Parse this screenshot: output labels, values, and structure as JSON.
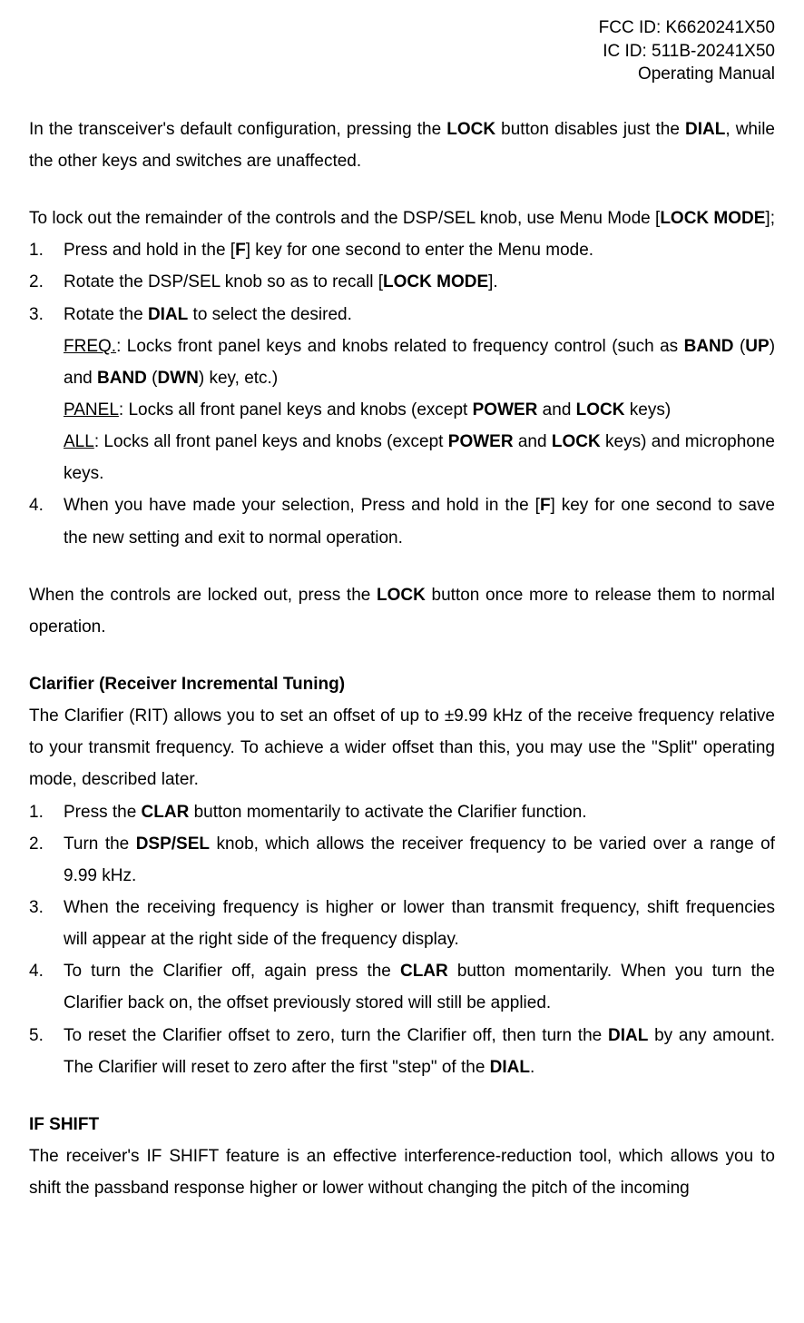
{
  "header": {
    "fcc": "FCC ID: K6620241X50",
    "ic": "IC ID: 511B-20241X50",
    "title": "Operating Manual"
  },
  "p1": {
    "t1": "In the transceiver's default configuration, pressing the ",
    "b1": "LOCK",
    "t2": " button disables just the ",
    "b2": "DIAL",
    "t3": ", while the other keys and switches are unaffected."
  },
  "p2": {
    "t1": "To lock out the remainder of the controls and the DSP/SEL knob, use Menu Mode [",
    "b1": "LOCK MODE",
    "t2": "];"
  },
  "list1": {
    "i1": {
      "t1": "Press and hold in the [",
      "b1": "F",
      "t2": "] key for one second to enter the Menu mode."
    },
    "i2": {
      "t1": "Rotate the DSP/SEL knob so as to recall [",
      "b1": "LOCK MODE",
      "t2": "]."
    },
    "i3": {
      "t1": "Rotate the ",
      "b1": "DIAL",
      "t2": " to select the desired."
    },
    "i3a": {
      "u1": "FREQ.",
      "t1": ": Locks front panel keys and knobs related to frequency control (such as ",
      "b1": "BAND",
      "t2": " (",
      "b2": "UP",
      "t3": ") and ",
      "b3": "BAND",
      "t4": " (",
      "b4": "DWN",
      "t5": ") key, etc.)"
    },
    "i3b": {
      "u1": "PANEL",
      "t1": ": Locks all front panel keys and knobs (except ",
      "b1": "POWER",
      "t2": " and ",
      "b2": "LOCK",
      "t3": " keys)"
    },
    "i3c": {
      "u1": "ALL",
      "t1": ": Locks all front panel keys and knobs (except ",
      "b1": "POWER",
      "t2": " and ",
      "b2": "LOCK",
      "t3": " keys) and microphone keys."
    },
    "i4": {
      "t1": "When you have made your selection, Press and hold in the [",
      "b1": "F",
      "t2": "] key for one second to save the new setting and exit to normal operation."
    }
  },
  "p3": {
    "t1": "When the controls are locked out, press the ",
    "b1": "LOCK",
    "t2": " button once more to release them to normal operation."
  },
  "sec1": {
    "title": "Clarifier (Receiver Incremental Tuning)"
  },
  "p4": {
    "t1": "The Clarifier (RIT) allows you to set an offset of up to ±9.99 kHz of the receive frequency relative to your transmit frequency. To achieve a wider offset than this, you may use the \"Split\" operating mode, described later."
  },
  "list2": {
    "i1": {
      "t1": "Press the ",
      "b1": "CLAR",
      "t2": " button momentarily to activate the Clarifier function."
    },
    "i2": {
      "t1": "Turn the ",
      "b1": "DSP/SEL",
      "t2": " knob, which allows the receiver frequency to be varied over a range of 9.99 kHz."
    },
    "i3": {
      "t1": "When the receiving frequency is higher or lower than transmit frequency, shift frequencies will appear at the right side of the frequency display."
    },
    "i4": {
      "t1": "To turn the Clarifier off, again press the ",
      "b1": "CLAR",
      "t2": " button momentarily. When you turn the Clarifier back on, the offset previously stored will still be applied."
    },
    "i5": {
      "t1": "To reset the Clarifier offset to zero, turn the Clarifier off, then turn the ",
      "b1": "DIAL",
      "t2": " by any amount. The Clarifier will reset to zero after the first \"step\" of the ",
      "b2": "DIAL",
      "t3": "."
    }
  },
  "sec2": {
    "title": "IF SHIFT"
  },
  "p5": {
    "t1": "The receiver's IF SHIFT feature is an effective interference-reduction tool, which allows you to shift the passband response higher or lower without changing the pitch of the incoming"
  }
}
